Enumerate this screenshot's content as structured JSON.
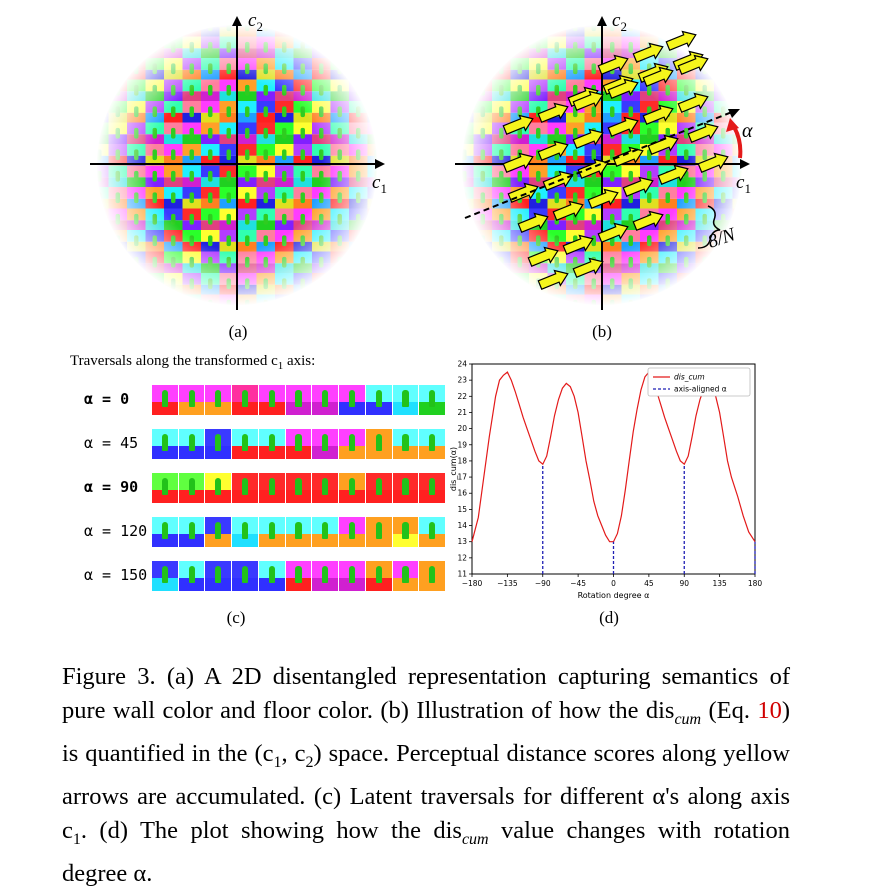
{
  "panel_a": {
    "axis_x_label": "c",
    "axis_x_sub": "1",
    "axis_y_label": "c",
    "axis_y_sub": "2",
    "label": "(a)"
  },
  "panel_b": {
    "axis_x_label": "c",
    "axis_x_sub": "1",
    "axis_y_label": "c",
    "axis_y_sub": "2",
    "alpha_symbol": "α",
    "step_label": "8/N",
    "label": "(b)",
    "arrow_color": "#f5f51c",
    "rotation_arrow_color": "#e31a1a"
  },
  "panel_c": {
    "title": "Traversals along the transformed c",
    "title_sub": "1",
    "title_end": " axis:",
    "rows": [
      {
        "label": "α = 0",
        "bold": true
      },
      {
        "label": "α = 45",
        "bold": false
      },
      {
        "label": "α = 90",
        "bold": true
      },
      {
        "label": "α = 120",
        "bold": false
      },
      {
        "label": "α = 150",
        "bold": false
      }
    ],
    "label": "(c)"
  },
  "panel_d": {
    "label": "(d)"
  },
  "chart_data": {
    "type": "line",
    "xlabel": "Rotation degree α",
    "ylabel": "dis_cum(α)",
    "xlim": [
      -180,
      180
    ],
    "ylim": [
      11,
      24
    ],
    "xticks": [
      -180,
      -135,
      -90,
      -45,
      0,
      45,
      90,
      135,
      180
    ],
    "yticks": [
      11,
      12,
      13,
      14,
      15,
      16,
      17,
      18,
      19,
      20,
      21,
      22,
      23,
      24
    ],
    "legend_position": "top-right",
    "series": [
      {
        "name": "dis_cum",
        "color": "#e31a1a",
        "x": [
          -180,
          -172,
          -165,
          -158,
          -150,
          -145,
          -140,
          -135,
          -130,
          -125,
          -120,
          -115,
          -110,
          -105,
          -100,
          -95,
          -90,
          -85,
          -80,
          -75,
          -70,
          -65,
          -60,
          -55,
          -50,
          -45,
          -40,
          -35,
          -30,
          -25,
          -20,
          -15,
          -10,
          -5,
          0,
          5,
          10,
          15,
          20,
          25,
          30,
          35,
          40,
          45,
          50,
          55,
          60,
          65,
          70,
          75,
          80,
          85,
          90,
          95,
          100,
          105,
          110,
          115,
          120,
          125,
          130,
          135,
          140,
          145,
          150,
          158,
          165,
          172,
          180
        ],
        "y": [
          13.0,
          14.5,
          17.0,
          19.5,
          22.0,
          23.0,
          23.3,
          23.5,
          23.0,
          22.3,
          21.5,
          20.7,
          20.0,
          19.3,
          18.6,
          18.0,
          17.8,
          18.3,
          19.5,
          20.8,
          21.8,
          22.5,
          22.8,
          22.6,
          22.0,
          21.0,
          19.5,
          18.0,
          16.8,
          15.5,
          14.6,
          14.0,
          13.4,
          13.0,
          13.0,
          13.5,
          14.6,
          16.2,
          18.0,
          19.8,
          21.2,
          22.4,
          23.2,
          23.5,
          23.0,
          22.3,
          21.5,
          20.7,
          20.0,
          19.3,
          18.6,
          18.0,
          17.8,
          18.3,
          19.5,
          20.8,
          21.8,
          22.5,
          22.8,
          22.6,
          22.0,
          21.0,
          19.5,
          18.0,
          17.0,
          15.8,
          14.6,
          13.6,
          13.0
        ]
      },
      {
        "name": "axis-aligned α",
        "color": "#1f1fb4",
        "x": [
          -90,
          0,
          90,
          180
        ]
      }
    ]
  },
  "caption": {
    "prefix": "Figure 3. (a) A 2D disentangled representation capturing semantics of pure wall color and floor color. (b) Illustration of how the dis",
    "sub1": "cum",
    "mid1": " (Eq. ",
    "eq_ref": "10",
    "mid2": ") is quantified in the (c",
    "s1": "1",
    "mid3": ", c",
    "s2": "2",
    "mid4": ") space. Perceptual distance scores along yellow arrows are accumulated. (c) Latent traversals for different α's along axis c",
    "s3": "1",
    "mid5": ". (d) The plot showing how the dis",
    "sub2": "cum",
    "end": " value changes with rotation degree α."
  }
}
